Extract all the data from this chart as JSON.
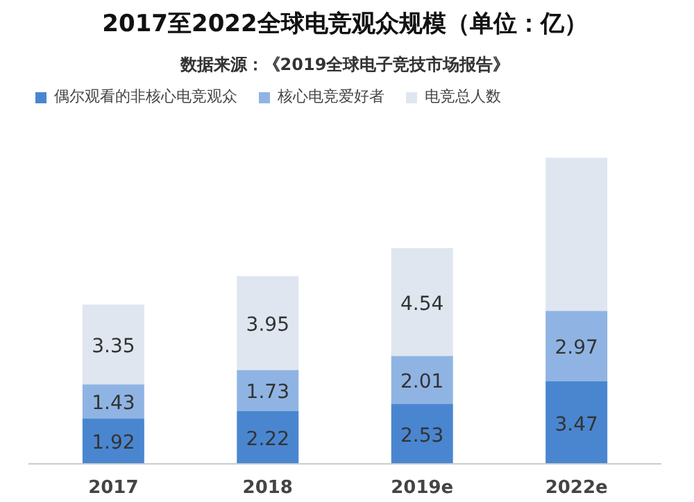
{
  "chart_data": {
    "type": "bar",
    "title": "2017至2022全球电竞观众规模（单位：亿）",
    "subtitle": "数据来源：《2019全球电子竞技市场报告》",
    "categories": [
      "2017",
      "2018",
      "2019e",
      "2022e"
    ],
    "stacked": true,
    "series": [
      {
        "name": "偶尔观看的非核心电竞观众",
        "color": "#4a86d0",
        "values": [
          1.92,
          2.22,
          2.53,
          3.47
        ],
        "value_labels": [
          "1.92",
          "2.22",
          "2.53",
          "3.47"
        ]
      },
      {
        "name": "核心电竞爱好者",
        "color": "#8fb4e3",
        "values": [
          1.43,
          1.73,
          2.01,
          2.97
        ],
        "value_labels": [
          "1.43",
          "1.73",
          "2.01",
          "2.97"
        ]
      },
      {
        "name": "电竞总人数",
        "color": "#dfe6f0",
        "values": [
          3.35,
          3.95,
          4.54,
          6.44
        ],
        "value_labels": [
          "3.35",
          "3.95",
          "4.54",
          null
        ]
      }
    ],
    "legend": "top left",
    "grid": false,
    "tick_labels": "x"
  }
}
